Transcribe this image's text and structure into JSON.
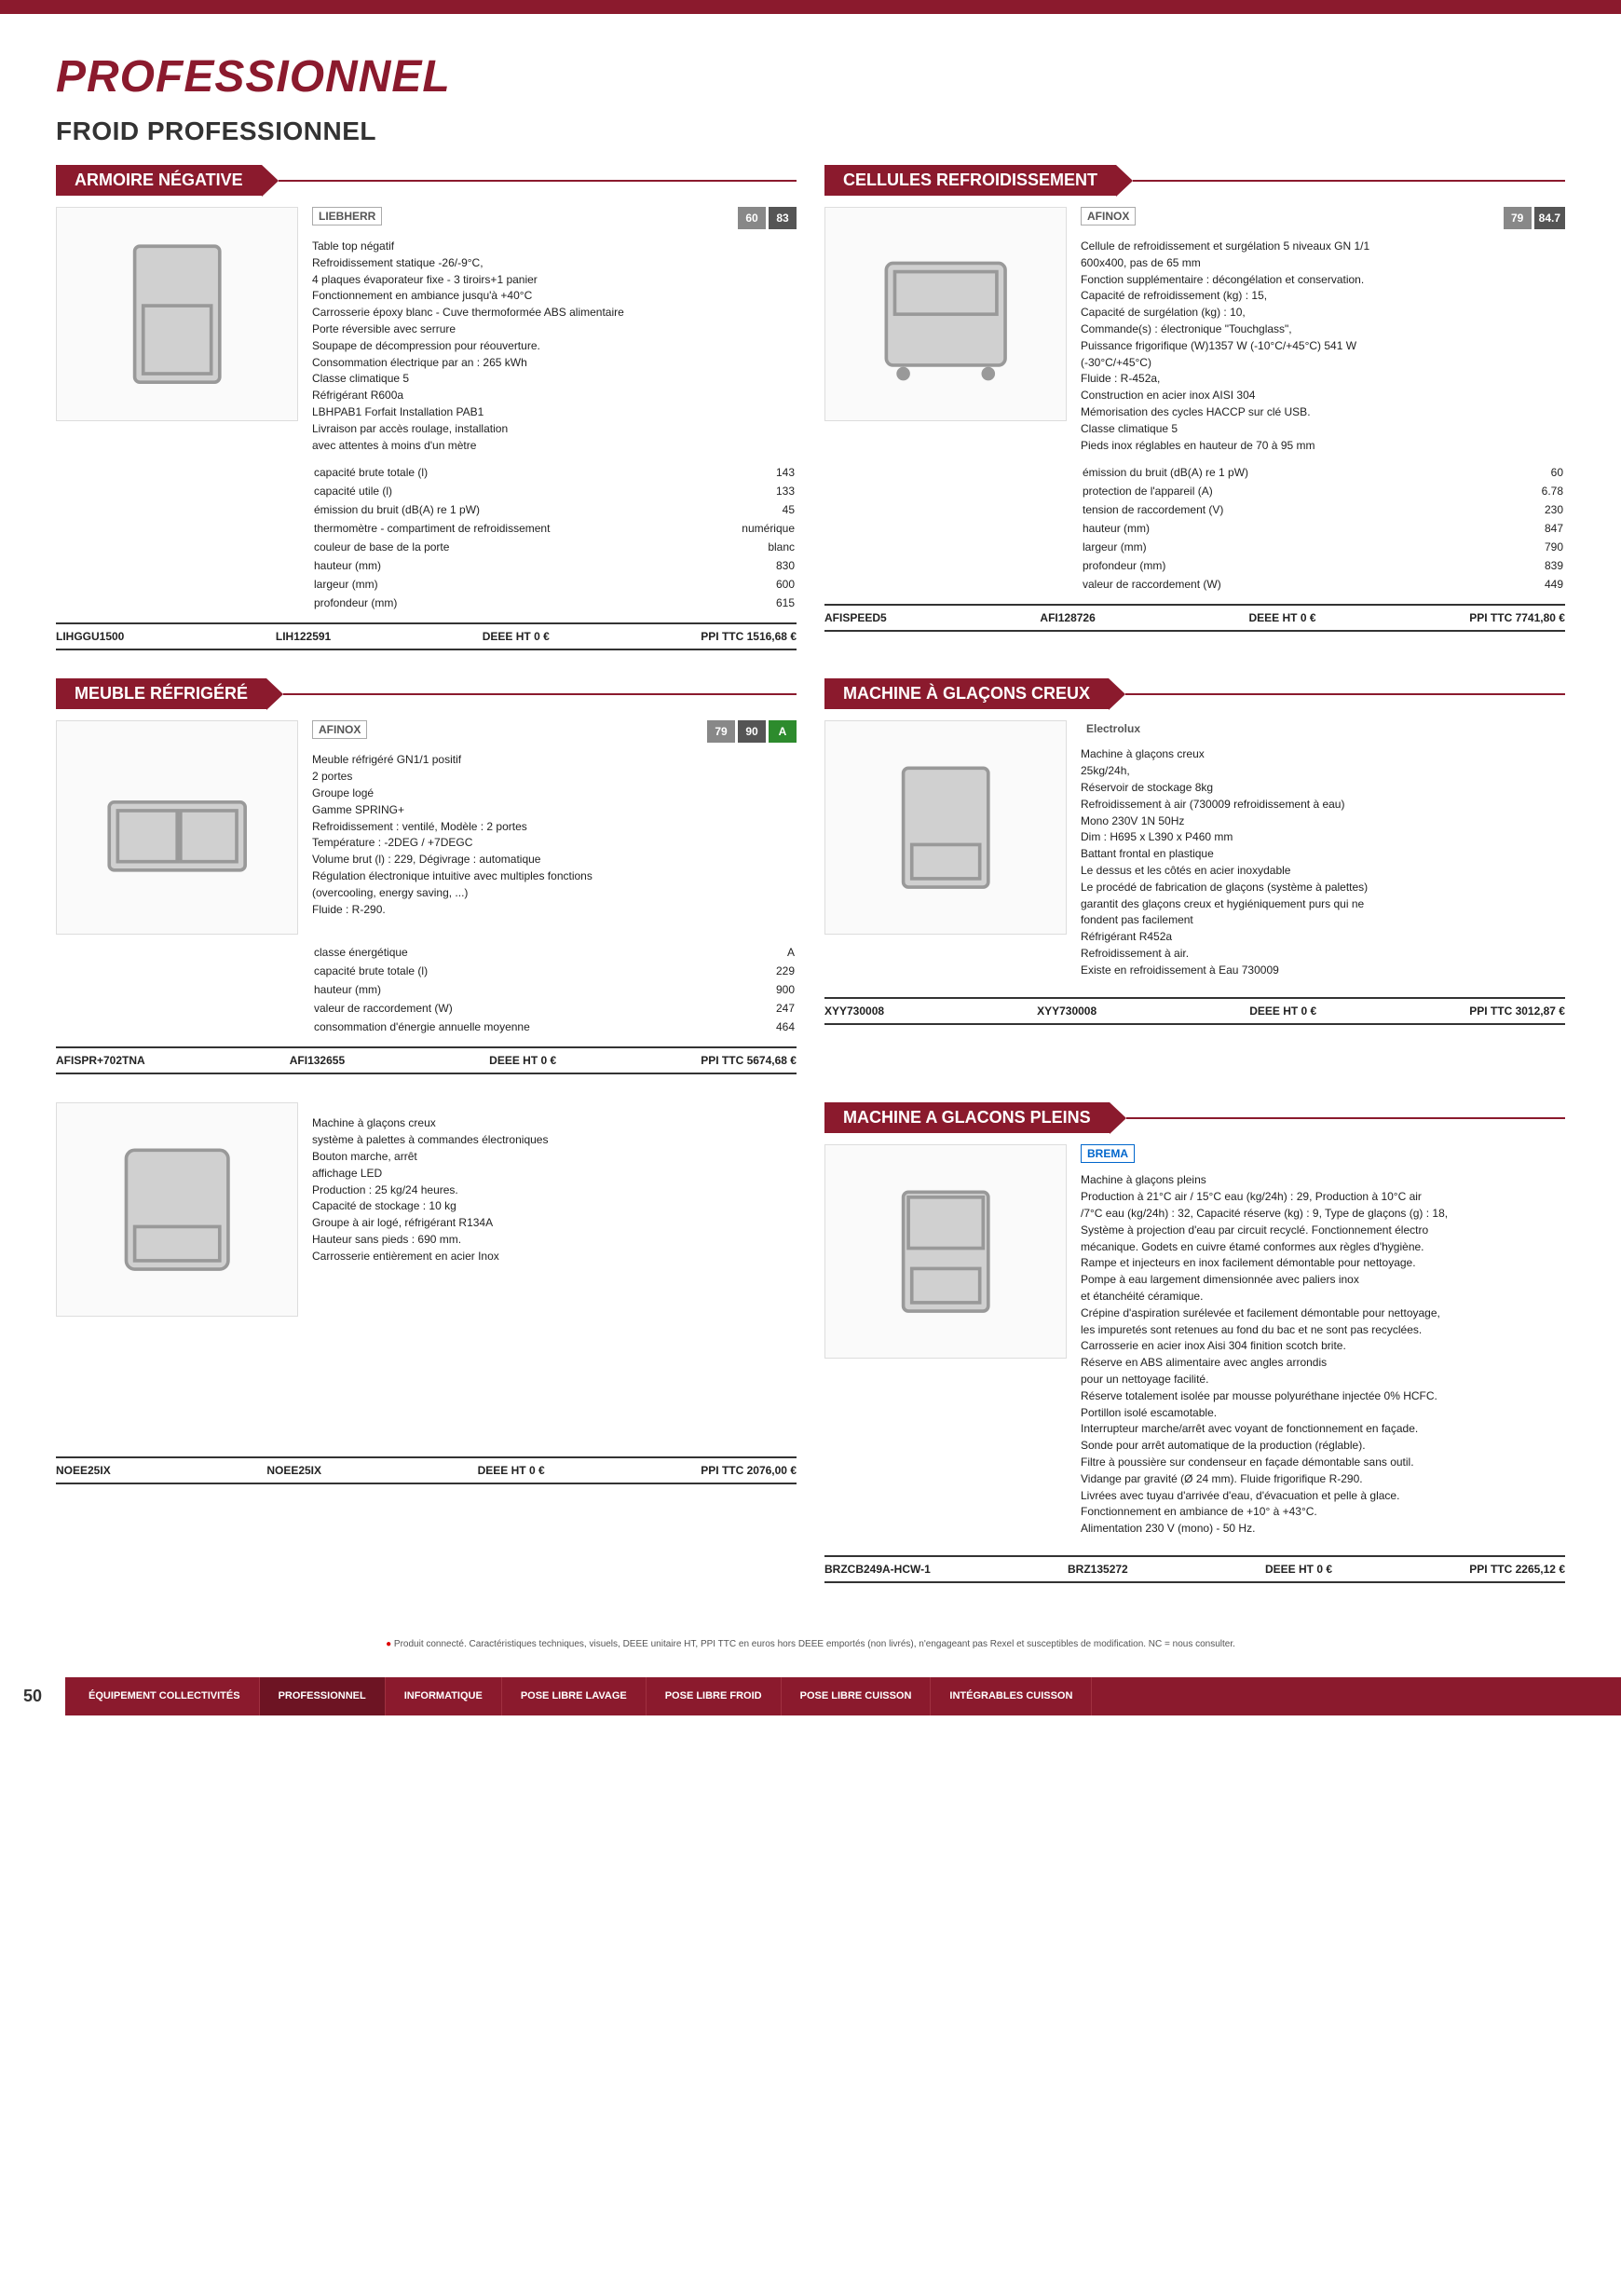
{
  "header": {
    "main_title": "PROFESSIONNEL",
    "sub_title": "FROID PROFESSIONNEL"
  },
  "products": [
    {
      "section_title": "ARMOIRE NÉGATIVE",
      "brand": "LIEBHERR",
      "badges": [
        {
          "text": "60",
          "class": "grey"
        },
        {
          "text": "83",
          "class": "dark"
        }
      ],
      "description": [
        "Table top négatif",
        "Refroidissement statique -26/-9°C,",
        "4 plaques évaporateur fixe - 3 tiroirs+1 panier",
        "Fonctionnement en ambiance jusqu'à +40°C",
        "Carrosserie époxy blanc - Cuve thermoformée ABS alimentaire",
        "Porte réversible avec serrure",
        "Soupape de décompression pour réouverture.",
        "Consommation électrique par an : 265 kWh",
        "Classe climatique 5",
        "Réfrigérant R600a",
        "LBHPAB1 Forfait Installation PAB1",
        "Livraison par accès roulage, installation",
        "avec attentes à moins d'un mètre"
      ],
      "specs": [
        [
          "capacité brute totale (l)",
          "143"
        ],
        [
          "capacité utile (l)",
          "133"
        ],
        [
          "émission du bruit (dB(A) re 1 pW)",
          "45"
        ],
        [
          "thermomètre - compartiment de refroidissement",
          "numérique"
        ],
        [
          "couleur de base de la porte",
          "blanc"
        ],
        [
          "hauteur (mm)",
          "830"
        ],
        [
          "largeur (mm)",
          "600"
        ],
        [
          "profondeur (mm)",
          "615"
        ]
      ],
      "footer": {
        "sku": "LIHGGU1500",
        "ref": "LIH122591",
        "deee": "DEEE HT 0 €",
        "price": "PPI TTC 1516,68 €"
      }
    },
    {
      "section_title": "CELLULES REFROIDISSEMENT",
      "brand": "AFINOX",
      "badges": [
        {
          "text": "79",
          "class": "grey"
        },
        {
          "text": "84.7",
          "class": "dark"
        }
      ],
      "description": [
        "Cellule de refroidissement et surgélation 5 niveaux GN 1/1",
        "600x400, pas de 65 mm",
        "Fonction supplémentaire : décongélation et conservation.",
        "Capacité de refroidissement (kg) : 15,",
        "Capacité de surgélation (kg) : 10,",
        "Commande(s) : électronique \"Touchglass\",",
        "Puissance frigorifique (W)1357 W (-10°C/+45°C) 541 W",
        "(-30°C/+45°C)",
        "Fluide : R-452a,",
        "Construction en acier inox AISI 304",
        "Mémorisation des cycles HACCP sur clé USB.",
        "Classe climatique 5",
        "Pieds inox réglables en hauteur de 70 à 95 mm"
      ],
      "specs": [
        [
          "émission du bruit (dB(A) re 1 pW)",
          "60"
        ],
        [
          "protection de l'appareil (A)",
          "6.78"
        ],
        [
          "tension de raccordement (V)",
          "230"
        ],
        [
          "hauteur (mm)",
          "847"
        ],
        [
          "largeur (mm)",
          "790"
        ],
        [
          "profondeur (mm)",
          "839"
        ],
        [
          "valeur de raccordement (W)",
          "449"
        ]
      ],
      "footer": {
        "sku": "AFISPEED5",
        "ref": "AFI128726",
        "deee": "DEEE HT 0 €",
        "price": "PPI TTC 7741,80 €"
      }
    },
    {
      "section_title": "MEUBLE RÉFRIGÉRÉ",
      "brand": "AFINOX",
      "badges": [
        {
          "text": "79",
          "class": "grey"
        },
        {
          "text": "90",
          "class": "dark"
        },
        {
          "text": "A",
          "class": "green"
        }
      ],
      "description": [
        "Meuble réfrigéré GN1/1 positif",
        "2 portes",
        "Groupe logé",
        "Gamme SPRING+",
        "Refroidissement : ventilé, Modèle : 2 portes",
        "Température : -2DEG / +7DEGC",
        "Volume brut (l) : 229, Dégivrage : automatique",
        "Régulation électronique intuitive avec multiples fonctions",
        "(overcooling, energy saving, ...)",
        "Fluide : R-290."
      ],
      "specs": [
        [
          "classe énergétique",
          "A"
        ],
        [
          "capacité brute totale (l)",
          "229"
        ],
        [
          "hauteur (mm)",
          "900"
        ],
        [
          "valeur de raccordement (W)",
          "247"
        ],
        [
          "consommation d'énergie annuelle moyenne",
          "464"
        ]
      ],
      "footer": {
        "sku": "AFISPR+702TNA",
        "ref": "AFI132655",
        "deee": "DEEE HT 0 €",
        "price": "PPI TTC 5674,68 €"
      }
    },
    {
      "section_title": "MACHINE À GLAÇONS CREUX",
      "brand": "Electrolux",
      "badges": [],
      "description": [
        "Machine à glaçons creux",
        "25kg/24h,",
        "Réservoir de stockage 8kg",
        "Refroidissement à air (730009 refroidissement à eau)",
        "Mono 230V 1N 50Hz",
        "Dim : H695 x L390 x P460 mm",
        "Battant frontal en plastique",
        "Le dessus et les côtés en acier inoxydable",
        "Le procédé de fabrication de glaçons (système à palettes)",
        "garantit des glaçons creux et hygiéniquement purs qui ne",
        "fondent pas facilement",
        "Réfrigérant R452a",
        "Refroidissement à air.",
        "Existe en refroidissement à Eau 730009"
      ],
      "specs": [],
      "footer": {
        "sku": "XYY730008",
        "ref": "XYY730008",
        "deee": "DEEE HT 0 €",
        "price": "PPI TTC 3012,87 €"
      }
    },
    {
      "section_title": "",
      "brand": " ",
      "badges": [],
      "description": [
        "Machine à glaçons creux",
        "système à palettes à commandes électroniques",
        "Bouton marche, arrêt",
        "affichage LED",
        "Production : 25 kg/24 heures.",
        "Capacité de stockage : 10 kg",
        "Groupe à air logé, réfrigérant R134A",
        "Hauteur sans pieds : 690 mm.",
        "Carrosserie entièrement en acier Inox"
      ],
      "specs": [],
      "footer": {
        "sku": "NOEE25IX",
        "ref": "NOEE25IX",
        "deee": "DEEE HT 0 €",
        "price": "PPI TTC 2076,00 €"
      }
    },
    {
      "section_title": "MACHINE A GLACONS PLEINS",
      "brand": "BREMA",
      "badges": [],
      "description": [
        "Machine à glaçons pleins",
        "Production à 21°C air / 15°C eau (kg/24h) : 29, Production à 10°C air",
        "/7°C eau (kg/24h) : 32, Capacité réserve (kg) : 9, Type de glaçons (g) : 18,",
        "Système à projection d'eau par circuit recyclé. Fonctionnement électro",
        "mécanique. Godets en cuivre étamé conformes aux règles d'hygiène.",
        "Rampe et injecteurs en inox facilement démontable pour nettoyage.",
        "Pompe à eau largement dimensionnée avec paliers inox",
        "et étanchéité céramique.",
        "Crépine d'aspiration surélevée et facilement démontable pour nettoyage,",
        "les impuretés sont retenues au fond du bac et ne sont pas recyclées.",
        "Carrosserie en acier inox Aisi 304 finition scotch brite.",
        "Réserve en ABS alimentaire avec angles arrondis",
        "pour un nettoyage facilité.",
        "Réserve totalement isolée par mousse polyuréthane injectée 0% HCFC.",
        "Portillon isolé escamotable.",
        "Interrupteur marche/arrêt avec voyant de fonctionnement en façade.",
        "Sonde pour arrêt automatique de la production (réglable).",
        "Filtre à poussière sur condenseur en façade démontable sans outil.",
        "Vidange par gravité (Ø 24 mm). Fluide frigorifique R-290.",
        "Livrées avec tuyau d'arrivée d'eau, d'évacuation et pelle à glace.",
        "Fonctionnement en ambiance de +10° à +43°C.",
        "Alimentation 230 V (mono) - 50 Hz."
      ],
      "specs": [],
      "footer": {
        "sku": "BRZCB249A-HCW-1",
        "ref": "BRZ135272",
        "deee": "DEEE HT 0 €",
        "price": "PPI TTC 2265,12 €"
      }
    }
  ],
  "footnote": "Produit connecté. Caractéristiques techniques, visuels, DEEE unitaire HT, PPI TTC en euros hors DEEE emportés (non livrés), n'engageant pas Rexel et susceptibles de modification. NC = nous consulter.",
  "nav": {
    "page_num": "50",
    "items": [
      "ÉQUIPEMENT COLLECTIVITÉS",
      "PROFESSIONNEL",
      "INFORMATIQUE",
      "POSE LIBRE LAVAGE",
      "POSE LIBRE FROID",
      "POSE LIBRE CUISSON",
      "INTÉGRABLES CUISSON"
    ]
  }
}
